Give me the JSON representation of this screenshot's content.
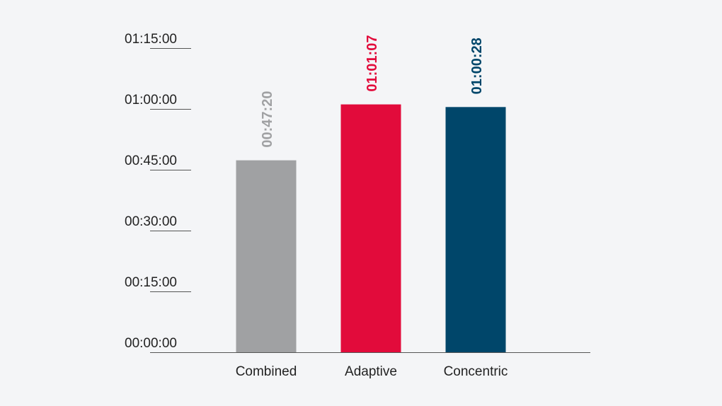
{
  "chart_data": {
    "type": "bar",
    "categories": [
      "Combined",
      "Adaptive",
      "Concentric"
    ],
    "values": [
      "00:47:20",
      "01:01:07",
      "01:00:28"
    ],
    "value_seconds": [
      2840,
      3667,
      3628
    ],
    "colors": [
      "#a0a1a3",
      "#e20b3b",
      "#00466a"
    ],
    "value_label_colors": [
      "#a0a1a3",
      "#e20b3b",
      "#00466a"
    ],
    "y_ticks": [
      "00:00:00",
      "00:15:00",
      "00:30:00",
      "00:45:00",
      "01:00:00",
      "01:15:00"
    ],
    "ylim": [
      "00:00:00",
      "01:15:00"
    ],
    "grid": false,
    "legend": "none"
  }
}
